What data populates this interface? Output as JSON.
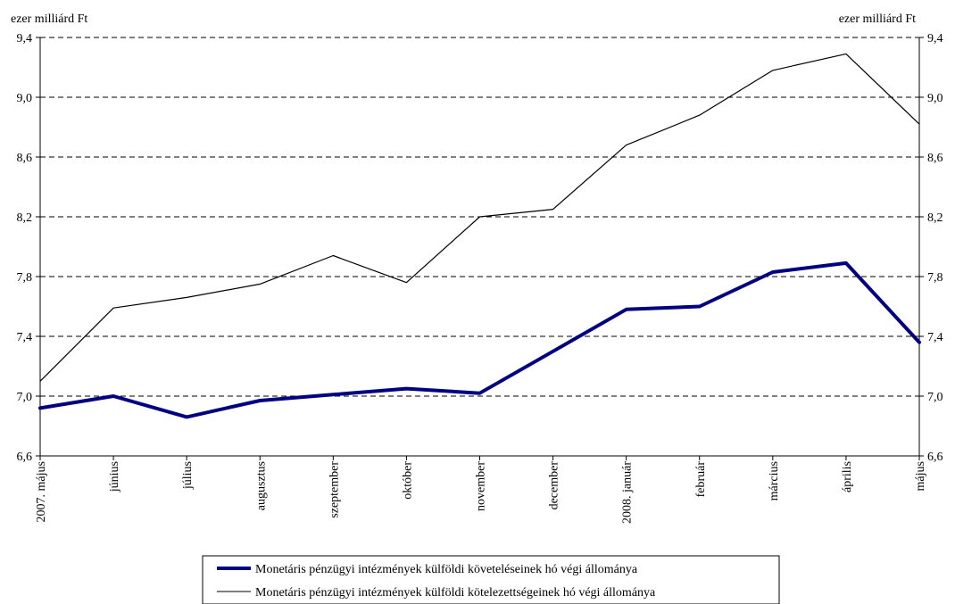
{
  "chart_data": {
    "type": "line",
    "left_axis_unit": "ezer milliárd Ft",
    "right_axis_unit": "ezer milliárd Ft",
    "ylim": [
      6.6,
      9.4
    ],
    "yticks": [
      "6,6",
      "7,0",
      "7,4",
      "7,8",
      "8,2",
      "8,6",
      "9,0",
      "9,4"
    ],
    "ytick_values": [
      6.6,
      7.0,
      7.4,
      7.8,
      8.2,
      8.6,
      9.0,
      9.4
    ],
    "grid": "horizontal dashed",
    "legend_placement": "bottom",
    "categories": [
      "2007. május",
      "június",
      "július",
      "augusztus",
      "szeptember",
      "október",
      "november",
      "december",
      "2008. január",
      "február",
      "március",
      "április",
      "május"
    ],
    "series": [
      {
        "name": "Monetáris pénzügyi intézmények külföldi követeléseinek hó végi állománya",
        "color": "#000080",
        "line_style": "thick",
        "values": [
          6.92,
          7.0,
          6.86,
          6.97,
          7.01,
          7.05,
          7.02,
          7.3,
          7.58,
          7.6,
          7.83,
          7.89,
          7.36
        ]
      },
      {
        "name": "Monetáris pénzügyi intézmények külföldi kötelezettségeinek hó végi állománya",
        "color": "#000000",
        "line_style": "thin",
        "values": [
          7.1,
          7.59,
          7.66,
          7.75,
          7.94,
          7.76,
          8.2,
          8.25,
          8.68,
          8.88,
          9.18,
          9.29,
          8.82
        ]
      }
    ]
  }
}
